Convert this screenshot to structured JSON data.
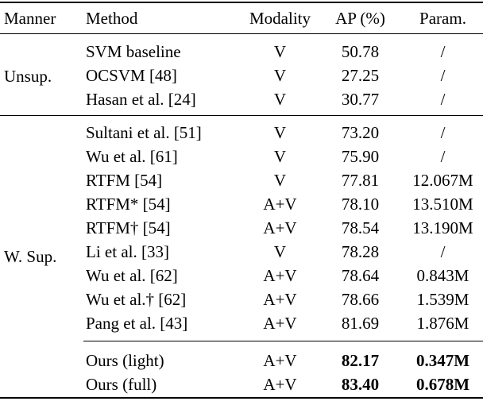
{
  "table": {
    "columns": {
      "manner": "Manner",
      "method": "Method",
      "modality": "Modality",
      "ap": "AP (%)",
      "param": "Param."
    },
    "groups": {
      "unsupervised": "Unsup.",
      "weakly_supervised": "W. Sup."
    },
    "rows": [
      {
        "method": "SVM baseline",
        "modality": "V",
        "ap": "50.78",
        "param": "/"
      },
      {
        "method": "OCSVM [48]",
        "modality": "V",
        "ap": "27.25",
        "param": "/"
      },
      {
        "method": "Hasan et al. [24]",
        "modality": "V",
        "ap": "30.77",
        "param": "/"
      },
      {
        "method": "Sultani et al. [51]",
        "modality": "V",
        "ap": "73.20",
        "param": "/"
      },
      {
        "method": "Wu et al. [61]",
        "modality": "V",
        "ap": "75.90",
        "param": "/"
      },
      {
        "method": "RTFM [54]",
        "modality": "V",
        "ap": "77.81",
        "param": "12.067M"
      },
      {
        "method": "RTFM* [54]",
        "modality": "A+V",
        "ap": "78.10",
        "param": "13.510M"
      },
      {
        "method": "RTFM† [54]",
        "modality": "A+V",
        "ap": "78.54",
        "param": "13.190M"
      },
      {
        "method": "Li et al. [33]",
        "modality": "V",
        "ap": "78.28",
        "param": "/"
      },
      {
        "method": "Wu et al. [62]",
        "modality": "A+V",
        "ap": "78.64",
        "param": "0.843M"
      },
      {
        "method": "Wu et al.† [62]",
        "modality": "A+V",
        "ap": "78.66",
        "param": "1.539M"
      },
      {
        "method": "Pang et al. [43]",
        "modality": "A+V",
        "ap": "81.69",
        "param": "1.876M"
      },
      {
        "method": "Ours (light)",
        "modality": "A+V",
        "ap": "82.17",
        "param": "0.347M"
      },
      {
        "method": "Ours (full)",
        "modality": "A+V",
        "ap": "83.40",
        "param": "0.678M"
      }
    ],
    "colors": {
      "text": "#000000",
      "background": "#ffffff",
      "rule": "#000000"
    }
  }
}
